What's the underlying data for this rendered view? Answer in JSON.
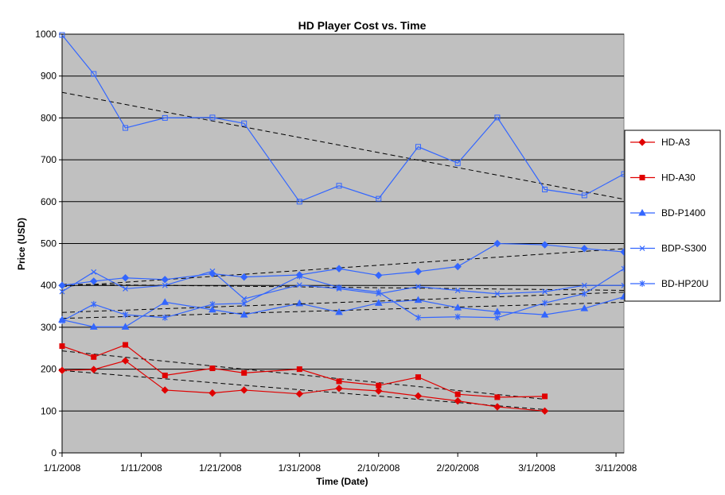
{
  "chart_data": {
    "type": "line",
    "title": "HD Player Cost vs. Time",
    "xlabel": "Time (Date)",
    "ylabel": "Price (USD)",
    "ylim": [
      0,
      1000
    ],
    "yticks": [
      0,
      100,
      200,
      300,
      400,
      500,
      600,
      700,
      800,
      900,
      1000
    ],
    "x_tick_labels": [
      "1/1/2008",
      "1/11/2008",
      "1/21/2008",
      "1/31/2008",
      "2/10/2008",
      "2/20/2008",
      "3/1/2008",
      "3/11/2008"
    ],
    "xlim": [
      "1/1/2008",
      "3/12/2008"
    ],
    "grid": "horizontal major gridlines",
    "plot_background": "#c0c0c0",
    "legend_position": "right",
    "trendlines": "linear, dashed black, one per series",
    "series": [
      {
        "name": "HD-A3",
        "color": "#e00000",
        "marker": "diamond",
        "points": [
          [
            "1/1/2008",
            197
          ],
          [
            "1/5/2008",
            199
          ],
          [
            "1/9/2008",
            220
          ],
          [
            "1/14/2008",
            150
          ],
          [
            "1/20/2008",
            143
          ],
          [
            "1/24/2008",
            150
          ],
          [
            "1/31/2008",
            141
          ],
          [
            "2/5/2008",
            154
          ],
          [
            "2/10/2008",
            148
          ],
          [
            "2/15/2008",
            136
          ],
          [
            "2/20/2008",
            124
          ],
          [
            "2/25/2008",
            110
          ],
          [
            "3/2/2008",
            100
          ]
        ]
      },
      {
        "name": "HD-A30",
        "color": "#e00000",
        "marker": "square",
        "points": [
          [
            "1/1/2008",
            255
          ],
          [
            "1/5/2008",
            229
          ],
          [
            "1/9/2008",
            258
          ],
          [
            "1/14/2008",
            185
          ],
          [
            "1/20/2008",
            202
          ],
          [
            "1/24/2008",
            191
          ],
          [
            "1/31/2008",
            200
          ],
          [
            "2/5/2008",
            171
          ],
          [
            "2/10/2008",
            161
          ],
          [
            "2/15/2008",
            181
          ],
          [
            "2/20/2008",
            140
          ],
          [
            "2/25/2008",
            133
          ],
          [
            "3/2/2008",
            135
          ]
        ]
      },
      {
        "name": "BD-P1400",
        "color": "#3366ff",
        "marker": "triangle",
        "points": [
          [
            "1/1/2008",
            318
          ],
          [
            "1/5/2008",
            301
          ],
          [
            "1/9/2008",
            301
          ],
          [
            "1/14/2008",
            360
          ],
          [
            "1/20/2008",
            342
          ],
          [
            "1/24/2008",
            330
          ],
          [
            "1/31/2008",
            357
          ],
          [
            "2/5/2008",
            336
          ],
          [
            "2/10/2008",
            358
          ],
          [
            "2/15/2008",
            365
          ],
          [
            "2/20/2008",
            347
          ],
          [
            "2/25/2008",
            337
          ],
          [
            "3/2/2008",
            330
          ],
          [
            "3/7/2008",
            345
          ],
          [
            "3/12/2008",
            373
          ]
        ]
      },
      {
        "name": "BDP-S300",
        "color": "#3366ff",
        "marker": "x",
        "points": [
          [
            "1/1/2008",
            385
          ],
          [
            "1/5/2008",
            432
          ],
          [
            "1/9/2008",
            392
          ],
          [
            "1/14/2008",
            400
          ],
          [
            "1/20/2008",
            434
          ],
          [
            "1/24/2008",
            368
          ],
          [
            "1/31/2008",
            401
          ],
          [
            "2/5/2008",
            392
          ],
          [
            "2/10/2008",
            380
          ],
          [
            "2/15/2008",
            397
          ],
          [
            "2/20/2008",
            388
          ],
          [
            "2/25/2008",
            380
          ],
          [
            "3/2/2008",
            385
          ],
          [
            "3/7/2008",
            400
          ],
          [
            "3/12/2008",
            400
          ]
        ]
      },
      {
        "name": "BD-HP20U",
        "color": "#3366ff",
        "marker": "star",
        "points": [
          [
            "1/1/2008",
            315
          ],
          [
            "1/5/2008",
            355
          ],
          [
            "1/9/2008",
            330
          ],
          [
            "1/14/2008",
            323
          ],
          [
            "1/20/2008",
            355
          ],
          [
            "1/24/2008",
            357
          ],
          [
            "1/31/2008",
            422
          ],
          [
            "2/5/2008",
            395
          ],
          [
            "2/10/2008",
            384
          ],
          [
            "2/15/2008",
            323
          ],
          [
            "2/20/2008",
            325
          ],
          [
            "2/25/2008",
            323
          ],
          [
            "3/2/2008",
            358
          ],
          [
            "3/7/2008",
            380
          ],
          [
            "3/12/2008",
            440
          ]
        ]
      },
      {
        "name": "",
        "color": "#3366ff",
        "marker": "open-square",
        "points": [
          [
            "1/1/2008",
            998
          ],
          [
            "1/5/2008",
            905
          ],
          [
            "1/9/2008",
            776
          ],
          [
            "1/14/2008",
            800
          ],
          [
            "1/20/2008",
            801
          ],
          [
            "1/24/2008",
            787
          ],
          [
            "1/31/2008",
            600
          ],
          [
            "2/5/2008",
            638
          ],
          [
            "2/10/2008",
            607
          ],
          [
            "2/15/2008",
            731
          ],
          [
            "2/20/2008",
            692
          ],
          [
            "2/25/2008",
            801
          ],
          [
            "3/2/2008",
            629
          ],
          [
            "3/7/2008",
            615
          ],
          [
            "3/12/2008",
            666
          ]
        ]
      },
      {
        "name": "",
        "color": "#3366ff",
        "marker": "diamond",
        "points": [
          [
            "1/1/2008",
            400
          ],
          [
            "1/5/2008",
            410
          ],
          [
            "1/9/2008",
            418
          ],
          [
            "1/14/2008",
            414
          ],
          [
            "1/20/2008",
            428
          ],
          [
            "1/24/2008",
            420
          ],
          [
            "1/31/2008",
            425
          ],
          [
            "2/5/2008",
            440
          ],
          [
            "2/10/2008",
            424
          ],
          [
            "2/15/2008",
            433
          ],
          [
            "2/20/2008",
            445
          ],
          [
            "2/25/2008",
            500
          ],
          [
            "3/2/2008",
            497
          ],
          [
            "3/7/2008",
            488
          ],
          [
            "3/12/2008",
            480
          ]
        ]
      }
    ]
  }
}
